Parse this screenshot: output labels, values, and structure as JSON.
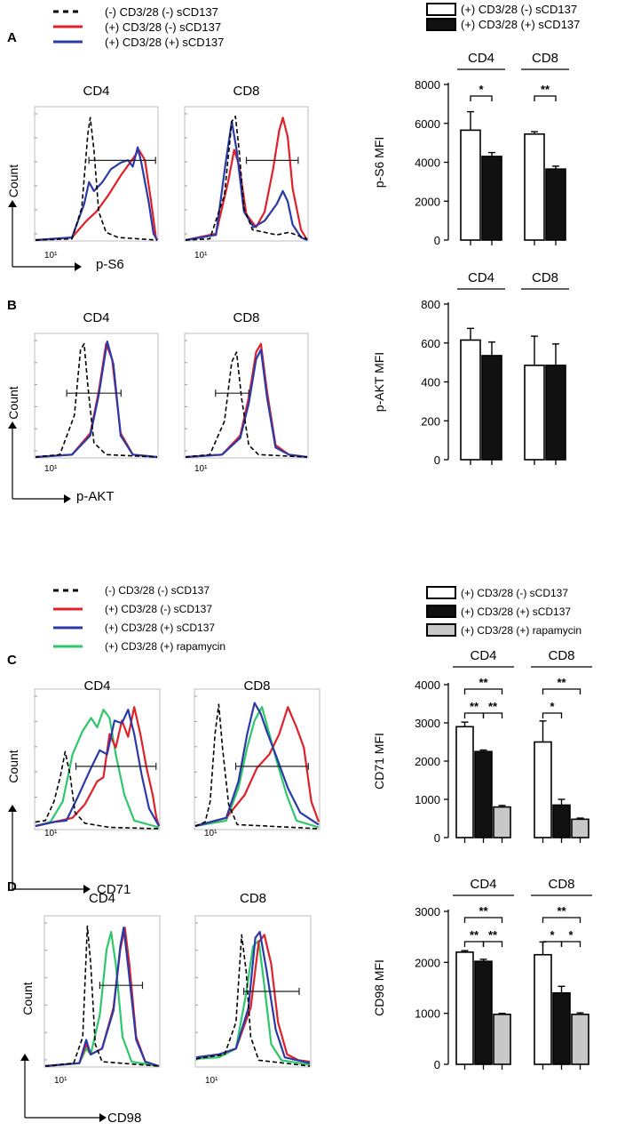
{
  "colors": {
    "untreated": "#000000",
    "stim": "#e0202a",
    "stim_sCD137": "#2a3aa8",
    "stim_rapamycin": "#2ec76a",
    "bar_white": "#ffffff",
    "bar_black": "#111111",
    "bar_gray": "#c8c8c8"
  },
  "legend_top_left": {
    "items": [
      {
        "label": "(-) CD3/28 (-) sCD137",
        "style": "dashed",
        "color": "#000000"
      },
      {
        "label": "(+) CD3/28 (-) sCD137",
        "style": "solid",
        "color": "#e0202a"
      },
      {
        "label": "(+) CD3/28 (+) sCD137",
        "style": "solid",
        "color": "#2a3aa8"
      }
    ]
  },
  "legend_top_right": {
    "items": [
      {
        "label": "(+) CD3/28 (-) sCD137",
        "fill": "#ffffff"
      },
      {
        "label": "(+) CD3/28 (+) sCD137",
        "fill": "#111111"
      }
    ]
  },
  "legend_mid_left": {
    "items": [
      {
        "label": "(-) CD3/28 (-) sCD137",
        "style": "dashed",
        "color": "#000000"
      },
      {
        "label": "(+) CD3/28 (-) sCD137",
        "style": "solid",
        "color": "#e0202a"
      },
      {
        "label": "(+) CD3/28 (+) sCD137",
        "style": "solid",
        "color": "#2a3aa8"
      },
      {
        "label": "(+) CD3/28 (+) rapamycin",
        "style": "solid",
        "color": "#2ec76a"
      }
    ]
  },
  "legend_mid_right": {
    "items": [
      {
        "label": "(+) CD3/28 (-) sCD137",
        "fill": "#ffffff"
      },
      {
        "label": "(+) CD3/28 (+) sCD137",
        "fill": "#111111"
      },
      {
        "label": "(+) CD3/28 (+) rapamycin",
        "fill": "#c8c8c8"
      }
    ]
  },
  "histograms": [
    {
      "panel": "A",
      "marker": "p-S6",
      "count_label": "Count",
      "tick_label": "10¹",
      "subplots": [
        {
          "title": "CD4"
        },
        {
          "title": "CD8"
        }
      ]
    },
    {
      "panel": "B",
      "marker": "p-AKT",
      "count_label": "Count",
      "tick_label": "10¹",
      "subplots": [
        {
          "title": "CD4"
        },
        {
          "title": "CD8"
        }
      ]
    },
    {
      "panel": "C",
      "marker": "CD71",
      "count_label": "Count",
      "tick_label": "10¹",
      "subplots": [
        {
          "title": "CD4"
        },
        {
          "title": "CD8"
        }
      ]
    },
    {
      "panel": "D",
      "marker": "CD98",
      "count_label": "Count",
      "tick_label": "10¹",
      "subplots": [
        {
          "title": "CD4"
        },
        {
          "title": "CD8"
        }
      ]
    }
  ],
  "chart_data": [
    {
      "type": "bar",
      "panel": "A",
      "title": "",
      "ylabel": "p-S6 MFI",
      "ylim": [
        0,
        8000
      ],
      "yticks": [
        "0",
        "2000",
        "4000",
        "6000",
        "8000"
      ],
      "groups": [
        "CD4",
        "CD8"
      ],
      "series": [
        {
          "name": "(+) CD3/28 (-) sCD137",
          "values": [
            5650,
            5450
          ],
          "errors": [
            950,
            120
          ]
        },
        {
          "name": "(+) CD3/28 (+) sCD137",
          "values": [
            4300,
            3650
          ],
          "errors": [
            200,
            150
          ]
        }
      ],
      "significance": [
        {
          "group": 0,
          "from": 0,
          "to": 1,
          "label": "*"
        },
        {
          "group": 1,
          "from": 0,
          "to": 1,
          "label": "**"
        }
      ]
    },
    {
      "type": "bar",
      "panel": "B",
      "title": "",
      "ylabel": "p-AKT MFI",
      "ylim": [
        0,
        800
      ],
      "yticks": [
        "0",
        "200",
        "400",
        "600",
        "800"
      ],
      "groups": [
        "CD4",
        "CD8"
      ],
      "series": [
        {
          "name": "(+) CD3/28 (-) sCD137",
          "values": [
            615,
            485
          ],
          "errors": [
            60,
            150
          ]
        },
        {
          "name": "(+) CD3/28 (+) sCD137",
          "values": [
            535,
            485
          ],
          "errors": [
            70,
            110
          ]
        }
      ],
      "significance": []
    },
    {
      "type": "bar",
      "panel": "C",
      "title": "",
      "ylabel": "CD71 MFI",
      "ylim": [
        0,
        4000
      ],
      "yticks": [
        "0",
        "1000",
        "2000",
        "3000",
        "4000"
      ],
      "groups": [
        "CD4",
        "CD8"
      ],
      "series": [
        {
          "name": "(+) CD3/28 (-) sCD137",
          "values": [
            2900,
            2500
          ],
          "errors": [
            120,
            550
          ]
        },
        {
          "name": "(+) CD3/28 (+) sCD137",
          "values": [
            2250,
            850
          ],
          "errors": [
            40,
            150
          ]
        },
        {
          "name": "(+) CD3/28 (+) rapamycin",
          "values": [
            800,
            480
          ],
          "errors": [
            40,
            30
          ]
        }
      ],
      "significance": [
        {
          "group": 0,
          "from": 0,
          "to": 2,
          "label": "**",
          "level": 2
        },
        {
          "group": 0,
          "from": 0,
          "to": 1,
          "label": "**",
          "level": 1
        },
        {
          "group": 0,
          "from": 1,
          "to": 2,
          "label": "**",
          "level": 1
        },
        {
          "group": 1,
          "from": 0,
          "to": 2,
          "label": "**",
          "level": 2
        },
        {
          "group": 1,
          "from": 0,
          "to": 1,
          "label": "*",
          "level": 1
        }
      ]
    },
    {
      "type": "bar",
      "panel": "D",
      "title": "",
      "ylabel": "CD98 MFI",
      "ylim": [
        0,
        3000
      ],
      "yticks": [
        "0",
        "1000",
        "2000",
        "3000"
      ],
      "groups": [
        "CD4",
        "CD8"
      ],
      "series": [
        {
          "name": "(+) CD3/28 (-) sCD137",
          "values": [
            2200,
            2150
          ],
          "errors": [
            30,
            250
          ]
        },
        {
          "name": "(+) CD3/28 (+) sCD137",
          "values": [
            2020,
            1400
          ],
          "errors": [
            40,
            130
          ]
        },
        {
          "name": "(+) CD3/28 (+) rapamycin",
          "values": [
            980,
            980
          ],
          "errors": [
            20,
            30
          ]
        }
      ],
      "significance": [
        {
          "group": 0,
          "from": 0,
          "to": 2,
          "label": "**",
          "level": 2
        },
        {
          "group": 0,
          "from": 0,
          "to": 1,
          "label": "**",
          "level": 1
        },
        {
          "group": 0,
          "from": 1,
          "to": 2,
          "label": "**",
          "level": 1
        },
        {
          "group": 1,
          "from": 0,
          "to": 2,
          "label": "**",
          "level": 2
        },
        {
          "group": 1,
          "from": 0,
          "to": 1,
          "label": "*",
          "level": 1
        },
        {
          "group": 1,
          "from": 1,
          "to": 2,
          "label": "*",
          "level": 1
        }
      ]
    }
  ]
}
